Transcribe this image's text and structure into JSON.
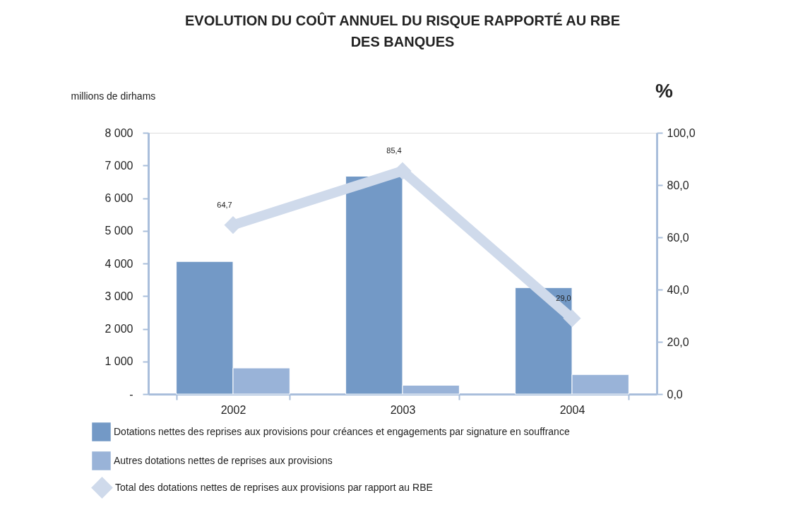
{
  "chart_data": {
    "type": "bar",
    "title": [
      "EVOLUTION DU COÛT ANNUEL DU RISQUE RAPPORTÉ AU RBE",
      "DES BANQUES"
    ],
    "ylabel": "millions de dirhams",
    "y2label": "%",
    "categories": [
      "2002",
      "2003",
      "2004"
    ],
    "series": [
      {
        "name": "Dotations nettes des reprises aux provisions pour créances et engagements par signature en souffrance",
        "color": "#7399c6",
        "values": [
          4060,
          6670,
          3260
        ]
      },
      {
        "name": "Autres dotations nettes de reprises aux provisions",
        "color": "#99b3d8",
        "values": [
          800,
          270,
          600
        ]
      },
      {
        "name": "Total des dotations nettes de reprises aux provisions par rapport au RBE",
        "type": "line",
        "axis": "y2",
        "color": "#cfdaeb",
        "marker": "diamond",
        "line_style": "solid",
        "values": [
          64.7,
          85.4,
          29.0
        ],
        "value_labels": [
          "64,7",
          "85,4",
          "29,0"
        ]
      }
    ],
    "ylim": [
      0,
      8000
    ],
    "yticks": [
      {
        "value": 0,
        "label": "-"
      },
      {
        "value": 1000,
        "label": "1 000"
      },
      {
        "value": 2000,
        "label": "2 000"
      },
      {
        "value": 3000,
        "label": "3 000"
      },
      {
        "value": 4000,
        "label": "4 000"
      },
      {
        "value": 5000,
        "label": "5 000"
      },
      {
        "value": 6000,
        "label": "6 000"
      },
      {
        "value": 7000,
        "label": "7 000"
      },
      {
        "value": 8000,
        "label": "8 000"
      }
    ],
    "y2lim": [
      0,
      100
    ],
    "y2ticks": [
      {
        "value": 0,
        "label": "0,0"
      },
      {
        "value": 20,
        "label": "20,0"
      },
      {
        "value": 40,
        "label": "40,0"
      },
      {
        "value": 60,
        "label": "60,0"
      },
      {
        "value": 80,
        "label": "80,0"
      },
      {
        "value": 100,
        "label": "100,0"
      }
    ],
    "grid": false,
    "legend": "bottom"
  }
}
